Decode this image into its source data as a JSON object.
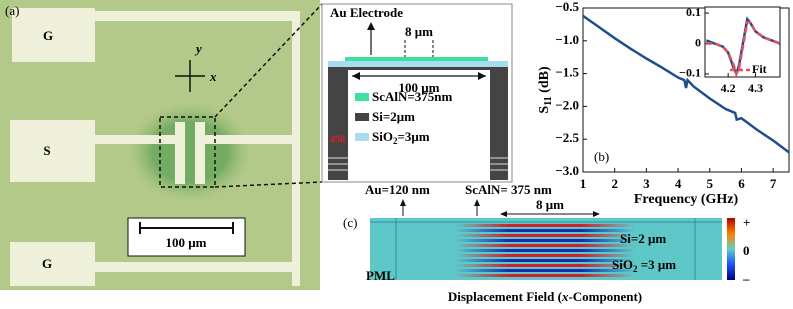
{
  "panel_a": {
    "label": "(a)",
    "pads": [
      "G",
      "S",
      "G"
    ],
    "axes": [
      "y",
      "x"
    ],
    "scale_bar": "100 μm"
  },
  "cross_section": {
    "title": "Au Electrode",
    "gap": "8 μm",
    "width": "100 μm",
    "legend": [
      [
        "ScAlN=375nm"
      ],
      [
        "Si=2μm"
      ],
      [
        "SiO",
        "2",
        "=3μm"
      ]
    ],
    "marker": "450"
  },
  "chart_data": [
    {
      "type": "line",
      "label": "(b)",
      "xlabel": "Frequency (GHz)",
      "ylabel": [
        "S",
        "11",
        " (dB)"
      ],
      "x": [
        1,
        1.5,
        2,
        2.5,
        3,
        3.5,
        4,
        4.2,
        4.25,
        4.3,
        4.5,
        5,
        5.5,
        5.8,
        5.85,
        6,
        6.5,
        7,
        7.5
      ],
      "series": [
        {
          "color": "#1f4e8c",
          "values": [
            -0.62,
            -0.79,
            -0.96,
            -1.12,
            -1.27,
            -1.41,
            -1.56,
            -1.6,
            -1.72,
            -1.6,
            -1.7,
            -1.88,
            -2.04,
            -2.1,
            -2.2,
            -2.18,
            -2.36,
            -2.52,
            -2.7
          ]
        }
      ],
      "xlim": [
        1,
        7.5
      ],
      "xticks": [
        1,
        2,
        3,
        4,
        5,
        6,
        7
      ],
      "ylim": [
        -3,
        -0.5
      ],
      "yticks": [
        {
          "value": -3,
          "label": "−3.0"
        },
        {
          "value": -2.5,
          "label": "−2.5"
        },
        {
          "value": -2,
          "label": "−2.0"
        },
        {
          "value": -1.5,
          "label": "−1.5"
        },
        {
          "value": -1,
          "label": "−1.0"
        },
        {
          "value": -0.5,
          "label": "−0.5"
        }
      ]
    },
    {
      "type": "line",
      "x": [
        4.12,
        4.15,
        4.18,
        4.2,
        4.22,
        4.23,
        4.24,
        4.26,
        4.27,
        4.28,
        4.3,
        4.33,
        4.36,
        4.39
      ],
      "series": [
        {
          "color": "#1f4e8c",
          "values": [
            0.01,
            0,
            -0.01,
            -0.03,
            -0.08,
            -0.1,
            -0.07,
            0.03,
            0.08,
            0.07,
            0.04,
            0.02,
            0.01,
            0
          ]
        },
        {
          "name": "Fit",
          "color": "#e8505b",
          "dash": true,
          "values": [
            0,
            0,
            -0.01,
            -0.03,
            -0.07,
            -0.1,
            -0.08,
            0.02,
            0.07,
            0.07,
            0.04,
            0.02,
            0.01,
            0
          ]
        }
      ],
      "xlim": [
        4.115,
        4.39
      ],
      "xticks": [
        4.2,
        4.3
      ],
      "ylim": [
        -0.11,
        0.12
      ],
      "yticks": [
        {
          "value": -0.1,
          "label": "−0.1"
        },
        0,
        0.1
      ]
    }
  ],
  "panel_c": {
    "label": "(c)",
    "au": "Au=120 nm",
    "scaln": "ScAlN= 375 nm",
    "gap": "8 μm",
    "si": "Si=2 μm",
    "sio2": [
      "SiO",
      "2",
      " =3 μm"
    ],
    "pml": "PML",
    "caption": [
      "Displacement Field (",
      "x",
      "-Component)"
    ],
    "colorbar": [
      "+",
      "0",
      "–"
    ]
  }
}
